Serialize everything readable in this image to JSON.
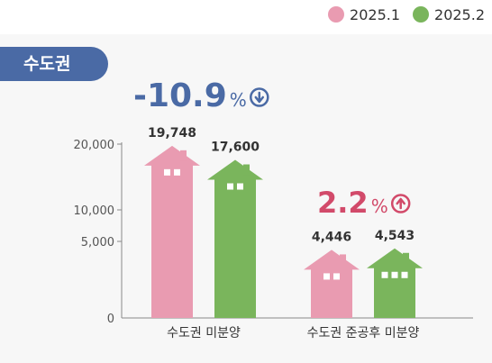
{
  "legend": {
    "items": [
      {
        "label": "2025.1",
        "color": "#e99bb1"
      },
      {
        "label": "2025.2",
        "color": "#7ab55c"
      }
    ]
  },
  "region": {
    "label": "수도권",
    "color": "#4a6aa5"
  },
  "colors": {
    "decrease": "#4a6aa5",
    "increase": "#d24a6a",
    "axis": "#888888"
  },
  "chart_data": {
    "type": "bar",
    "categories": [
      "수도권 미분양",
      "수도권 준공후 미분양"
    ],
    "series": [
      {
        "name": "2025.1",
        "values": [
          19748,
          4446
        ],
        "labels": [
          "19,748",
          "4,446"
        ]
      },
      {
        "name": "2025.2",
        "values": [
          17600,
          4543
        ],
        "labels": [
          "17,600",
          "4,543"
        ]
      }
    ],
    "y_ticks": [
      {
        "value": 0,
        "label": "0"
      },
      {
        "value": 5000,
        "label": "5,000"
      },
      {
        "value": 10000,
        "label": "10,000"
      },
      {
        "value": 20000,
        "label": "20,000"
      }
    ],
    "annotations": [
      {
        "value": "-10.9",
        "unit": "%",
        "direction": "down"
      },
      {
        "value": "2.2",
        "unit": "%",
        "direction": "up"
      }
    ]
  }
}
